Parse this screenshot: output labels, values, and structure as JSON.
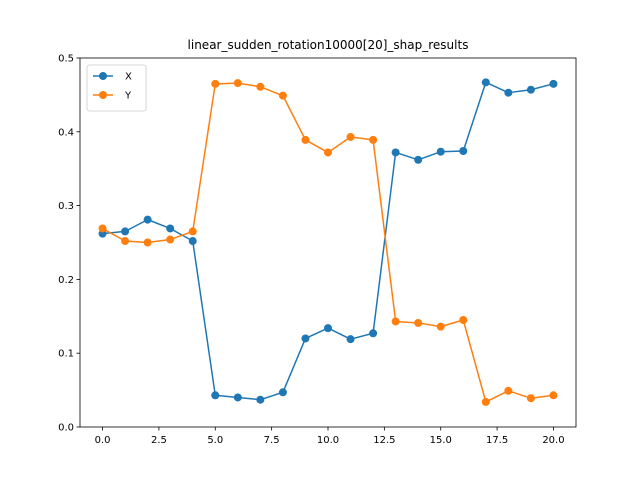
{
  "chart_data": {
    "type": "line",
    "title": "linear_sudden_rotation10000[20]_shap_results",
    "xlabel": "",
    "ylabel": "",
    "xlim": [
      -1.0,
      21.0
    ],
    "ylim": [
      0.0,
      0.5
    ],
    "x_ticks": [
      0.0,
      2.5,
      5.0,
      7.5,
      10.0,
      12.5,
      15.0,
      17.5,
      20.0
    ],
    "x_tick_labels": [
      "0.0",
      "2.5",
      "5.0",
      "7.5",
      "10.0",
      "12.5",
      "15.0",
      "17.5",
      "20.0"
    ],
    "y_ticks": [
      0.0,
      0.1,
      0.2,
      0.3,
      0.4,
      0.5
    ],
    "y_tick_labels": [
      "0.0",
      "0.1",
      "0.2",
      "0.3",
      "0.4",
      "0.5"
    ],
    "grid": false,
    "legend_position": "top-left",
    "x": [
      0,
      1,
      2,
      3,
      4,
      5,
      6,
      7,
      8,
      9,
      10,
      11,
      12,
      13,
      14,
      15,
      16,
      17,
      18,
      19,
      20
    ],
    "series": [
      {
        "name": "X",
        "color": "#1f77b4",
        "values": [
          0.262,
          0.265,
          0.281,
          0.269,
          0.252,
          0.043,
          0.04,
          0.037,
          0.047,
          0.12,
          0.134,
          0.119,
          0.127,
          0.372,
          0.362,
          0.373,
          0.374,
          0.467,
          0.453,
          0.457,
          0.465
        ]
      },
      {
        "name": "Y",
        "color": "#ff7f0e",
        "values": [
          0.269,
          0.252,
          0.25,
          0.254,
          0.265,
          0.465,
          0.466,
          0.461,
          0.449,
          0.389,
          0.372,
          0.393,
          0.389,
          0.143,
          0.141,
          0.136,
          0.145,
          0.034,
          0.049,
          0.039,
          0.043
        ]
      }
    ]
  }
}
